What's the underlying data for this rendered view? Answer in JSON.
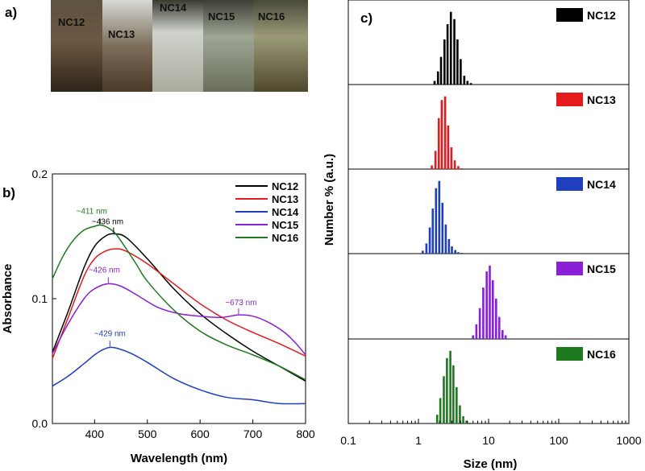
{
  "panels": {
    "a": "a)",
    "b": "b)",
    "c": "c)"
  },
  "photo": {
    "vials": [
      "NC12",
      "NC13",
      "NC14",
      "NC15",
      "NC16"
    ]
  },
  "chart_data": [
    {
      "type": "line",
      "panel": "b",
      "xlabel": "Wavelength (nm)",
      "ylabel": "Absorbance",
      "xlim": [
        320,
        800
      ],
      "ylim": [
        0,
        0.2
      ],
      "xticks": [
        400,
        500,
        600,
        700,
        800
      ],
      "yticks": [
        0.0,
        0.1,
        0.2
      ],
      "ytick_labels": [
        "0.0",
        "0.1",
        "0.2"
      ],
      "legend": "top-right",
      "series": [
        {
          "name": "NC12",
          "color": "#000000",
          "x": [
            320,
            350,
            380,
            400,
            420,
            436,
            460,
            500,
            550,
            600,
            650,
            700,
            750,
            800
          ],
          "y": [
            0.057,
            0.09,
            0.125,
            0.142,
            0.15,
            0.152,
            0.149,
            0.132,
            0.108,
            0.088,
            0.072,
            0.058,
            0.046,
            0.034
          ]
        },
        {
          "name": "NC13",
          "color": "#e41a1c",
          "x": [
            320,
            350,
            380,
            400,
            420,
            440,
            460,
            500,
            550,
            600,
            650,
            700,
            750,
            800
          ],
          "y": [
            0.052,
            0.085,
            0.118,
            0.132,
            0.138,
            0.14,
            0.138,
            0.128,
            0.112,
            0.096,
            0.083,
            0.073,
            0.064,
            0.054
          ]
        },
        {
          "name": "NC14",
          "color": "#1f3fbf",
          "x": [
            320,
            350,
            380,
            400,
            415,
            429,
            445,
            470,
            500,
            550,
            600,
            650,
            700,
            750,
            800
          ],
          "y": [
            0.03,
            0.038,
            0.048,
            0.055,
            0.059,
            0.061,
            0.06,
            0.056,
            0.049,
            0.036,
            0.027,
            0.021,
            0.019,
            0.016,
            0.016
          ]
        },
        {
          "name": "NC15",
          "color": "#8a1fd6",
          "x": [
            320,
            350,
            380,
            400,
            426,
            450,
            480,
            520,
            560,
            600,
            640,
            673,
            700,
            730,
            760,
            780,
            800
          ],
          "y": [
            0.056,
            0.08,
            0.1,
            0.108,
            0.112,
            0.11,
            0.103,
            0.093,
            0.088,
            0.086,
            0.085,
            0.087,
            0.086,
            0.081,
            0.073,
            0.065,
            0.055
          ]
        },
        {
          "name": "NC16",
          "color": "#1e7a1e",
          "x": [
            320,
            340,
            360,
            380,
            400,
            411,
            425,
            440,
            460,
            480,
            500,
            550,
            600,
            650,
            700,
            750,
            800
          ],
          "y": [
            0.116,
            0.134,
            0.147,
            0.155,
            0.158,
            0.159,
            0.157,
            0.152,
            0.14,
            0.127,
            0.114,
            0.091,
            0.074,
            0.063,
            0.055,
            0.046,
            0.035
          ]
        }
      ],
      "annotations": [
        {
          "text": "~411 nm",
          "x": 411,
          "y": 0.159,
          "color": "#1e7a1e"
        },
        {
          "text": "~436 nm",
          "x": 436,
          "y": 0.152,
          "color": "#000000"
        },
        {
          "text": "~426 nm",
          "x": 426,
          "y": 0.112,
          "color": "#8a1fd6"
        },
        {
          "text": "~673 nm",
          "x": 673,
          "y": 0.087,
          "color": "#8a1fd6"
        },
        {
          "text": "~429 nm",
          "x": 429,
          "y": 0.061,
          "color": "#1f3fbf"
        }
      ]
    },
    {
      "type": "bar",
      "panel": "c",
      "xscale": "log",
      "xlabel": "Size (nm)",
      "ylabel": "Number % (a.u.)",
      "xlim": [
        0.1,
        1000
      ],
      "xticks": [
        0.1,
        1,
        10,
        100,
        1000
      ],
      "xtick_labels": [
        "0.1",
        "1",
        "10",
        "100",
        "1000"
      ],
      "legend": "top-right of each sub-panel",
      "series": [
        {
          "name": "NC12",
          "color": "#000000",
          "x": [
            1.7,
            1.9,
            2.1,
            2.35,
            2.6,
            2.9,
            3.25,
            3.6,
            4.0,
            4.5,
            5.0,
            5.6
          ],
          "y": [
            0.05,
            0.18,
            0.38,
            0.62,
            0.83,
            1.0,
            0.9,
            0.62,
            0.35,
            0.12,
            0.05,
            0.02
          ]
        },
        {
          "name": "NC13",
          "color": "#e41a1c",
          "x": [
            1.55,
            1.75,
            1.95,
            2.15,
            2.4,
            2.65,
            2.95,
            3.3,
            3.7,
            4.1
          ],
          "y": [
            0.05,
            0.25,
            0.7,
            0.95,
            1.0,
            0.6,
            0.3,
            0.12,
            0.04,
            0.01
          ]
        },
        {
          "name": "NC14",
          "color": "#1f3fbf",
          "x": [
            1.15,
            1.3,
            1.45,
            1.6,
            1.78,
            1.98,
            2.2,
            2.45,
            2.72,
            3.0,
            3.35,
            3.7,
            4.1
          ],
          "y": [
            0.04,
            0.14,
            0.36,
            0.62,
            0.9,
            1.0,
            0.7,
            0.4,
            0.2,
            0.1,
            0.05,
            0.02,
            0.01
          ]
        },
        {
          "name": "NC15",
          "color": "#8a1fd6",
          "x": [
            6.0,
            6.7,
            7.5,
            8.4,
            9.4,
            10.4,
            11.5,
            12.8,
            14.2,
            15.8,
            17.5
          ],
          "y": [
            0.05,
            0.2,
            0.42,
            0.7,
            0.92,
            1.0,
            0.8,
            0.55,
            0.3,
            0.12,
            0.05
          ]
        },
        {
          "name": "NC16",
          "color": "#1e7a1e",
          "x": [
            1.85,
            2.05,
            2.3,
            2.55,
            2.85,
            3.15,
            3.5,
            3.9,
            4.35,
            4.85,
            5.4
          ],
          "y": [
            0.12,
            0.35,
            0.65,
            0.9,
            1.0,
            0.8,
            0.5,
            0.25,
            0.1,
            0.04,
            0.01
          ]
        }
      ]
    }
  ]
}
